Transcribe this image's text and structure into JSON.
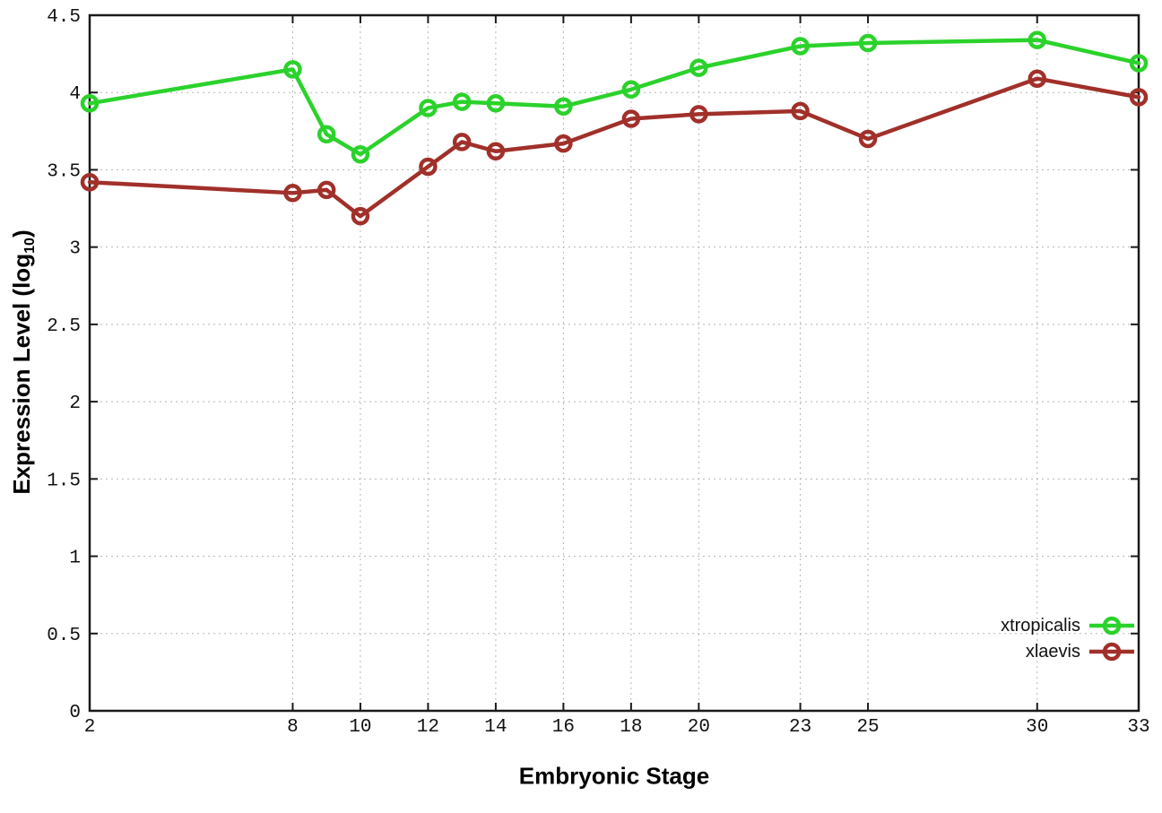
{
  "chart_data": {
    "type": "line",
    "title": "",
    "xlabel": "Embryonic Stage",
    "ylabel": "Expression Level (log10)",
    "ylabel_parts": {
      "pre": "Expression Level (log",
      "sub": "10",
      "post": ")"
    },
    "x": [
      2,
      8,
      9,
      10,
      12,
      13,
      14,
      16,
      18,
      20,
      23,
      25,
      30,
      33
    ],
    "series": [
      {
        "name": "xtropicalis",
        "color": "#2bd22b",
        "marker": "open-circle",
        "values": [
          3.93,
          4.15,
          3.73,
          3.6,
          3.9,
          3.94,
          3.93,
          3.91,
          4.02,
          4.16,
          4.3,
          4.32,
          4.34,
          4.19
        ]
      },
      {
        "name": "xlaevis",
        "color": "#a1302a",
        "marker": "open-circle",
        "values": [
          3.42,
          3.35,
          3.37,
          3.2,
          3.52,
          3.68,
          3.62,
          3.67,
          3.83,
          3.86,
          3.88,
          3.7,
          4.09,
          3.97
        ]
      }
    ],
    "xlim": [
      2,
      33
    ],
    "ylim": [
      0,
      4.5
    ],
    "xticks": [
      2,
      8,
      10,
      12,
      14,
      16,
      18,
      20,
      23,
      25,
      30,
      33
    ],
    "xtick_labels": [
      "2",
      "8",
      "10",
      "12",
      "14",
      "16",
      "18",
      "20",
      "23",
      "25",
      "30",
      "33"
    ],
    "yticks": [
      0,
      0.5,
      1,
      1.5,
      2,
      2.5,
      3,
      3.5,
      4,
      4.5
    ],
    "ytick_labels": [
      "0",
      "0.5",
      "1",
      "1.5",
      "2",
      "2.5",
      "3",
      "3.5",
      "4",
      "4.5"
    ],
    "grid": true,
    "grid_style": "dotted",
    "legend_position": "bottom-right",
    "colors": {
      "background": "#ffffff",
      "axis": "#1a1a1a",
      "grid": "#b5b5b5",
      "text": "#111111"
    }
  }
}
